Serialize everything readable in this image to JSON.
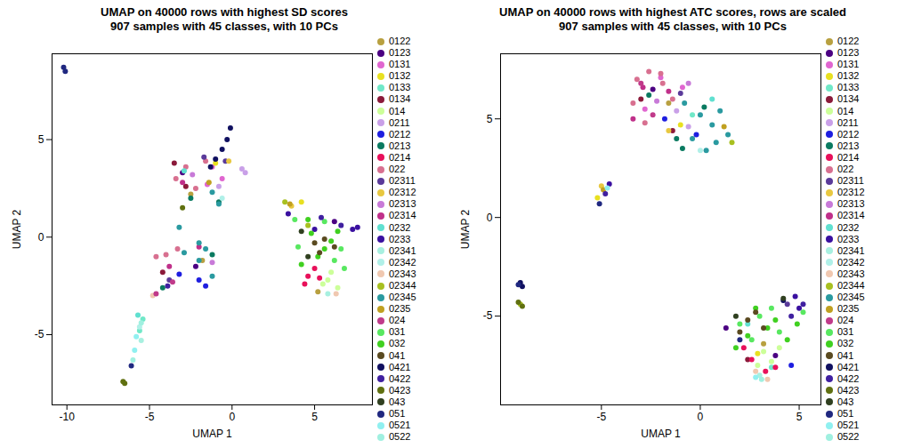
{
  "chart_data": [
    {
      "type": "scatter",
      "title": "UMAP on 40000 rows with highest SD scores",
      "subtitle": "907 samples with 45 classes, with 10 PCs",
      "xlabel": "UMAP 1",
      "ylabel": "UMAP 2",
      "xlim": [
        -10.9,
        8.5
      ],
      "ylim": [
        -8.6,
        9.4
      ],
      "xticks": [
        -10,
        -5,
        0,
        5
      ],
      "yticks": [
        -5,
        0,
        5
      ],
      "legend": "right",
      "series": [
        {
          "name": "0122",
          "color": "#b8a040",
          "x": [
            -2.5,
            -1.8,
            5.2
          ],
          "y": [
            2.2,
            -1.2,
            -2.8
          ]
        },
        {
          "name": "0123",
          "color": "#4b0082",
          "x": [
            -3.0,
            -2.2,
            6.2
          ],
          "y": [
            3.3,
            -1.5,
            0.8
          ]
        },
        {
          "name": "0131",
          "color": "#e066d0",
          "x": [
            -1.2,
            -0.6,
            -1.5
          ],
          "y": [
            3.6,
            3.0,
            2.7
          ]
        },
        {
          "name": "0132",
          "color": "#e8e020",
          "x": [
            -1.0,
            4.2
          ],
          "y": [
            3.8,
            1.8
          ]
        },
        {
          "name": "0133",
          "color": "#70e8c8",
          "x": [
            -5.4,
            -5.6
          ],
          "y": [
            -4.2,
            -4.8
          ]
        },
        {
          "name": "0134",
          "color": "#8b1a3a",
          "x": [
            -2.8,
            -4.2,
            -3.5
          ],
          "y": [
            2.6,
            -1.8,
            3.8
          ]
        },
        {
          "name": "014",
          "color": "#ccff99",
          "x": [
            5.8,
            6.4,
            6.0,
            5.5
          ],
          "y": [
            -2.2,
            -2.6,
            -1.8,
            -2.4
          ]
        },
        {
          "name": "0211",
          "color": "#c9a0e8",
          "x": [
            0.6,
            0.8,
            -0.8
          ],
          "y": [
            3.5,
            3.3,
            2.6
          ]
        },
        {
          "name": "0212",
          "color": "#1e1ee0",
          "x": [
            -2.0,
            -1.6,
            -3.2
          ],
          "y": [
            -2.2,
            -2.5,
            -1.9
          ]
        },
        {
          "name": "0213",
          "color": "#0a7a60",
          "x": [
            -2.5,
            -1.2,
            -4.2,
            -0.8
          ],
          "y": [
            2.0,
            -0.9,
            -2.6,
            1.8
          ]
        },
        {
          "name": "0214",
          "color": "#e8105a",
          "x": [
            4.6,
            5.0,
            4.4,
            5.3
          ],
          "y": [
            -2.0,
            -1.6,
            -2.4,
            -2.1
          ]
        },
        {
          "name": "022",
          "color": "#d87090",
          "x": [
            -3.4,
            -2.8,
            -2.2,
            -4.6,
            -4.0,
            -3.3,
            -1.6
          ],
          "y": [
            3.0,
            3.6,
            2.5,
            -1.0,
            -0.9,
            -0.6,
            3.9
          ]
        },
        {
          "name": "02311",
          "color": "#5a3a9a",
          "x": [
            -1.7,
            -0.4,
            -3.8
          ],
          "y": [
            4.1,
            3.9,
            -2.2
          ]
        },
        {
          "name": "02312",
          "color": "#e8c840",
          "x": [
            -0.2,
            3.6
          ],
          "y": [
            3.9,
            1.6
          ]
        },
        {
          "name": "02313",
          "color": "#c87ad8",
          "x": [
            -2.4,
            -1.2
          ],
          "y": [
            3.2,
            -1.3
          ]
        },
        {
          "name": "02314",
          "color": "#c0308a",
          "x": [
            -3.0,
            -3.8,
            -2.0
          ],
          "y": [
            2.8,
            -1.5,
            -0.5
          ]
        },
        {
          "name": "0232",
          "color": "#60e0d0",
          "x": [
            -5.7,
            -2.9
          ],
          "y": [
            -4.0,
            3.4
          ]
        },
        {
          "name": "0233",
          "color": "#3a10a0",
          "x": [
            7.6,
            7.3,
            3.4,
            5.0
          ],
          "y": [
            0.5,
            0.4,
            1.2,
            0.4
          ]
        },
        {
          "name": "02341",
          "color": "#a8f0e0",
          "x": [
            -5.5,
            5.8
          ],
          "y": [
            -5.3,
            -2.9
          ]
        },
        {
          "name": "02342",
          "color": "#b0f0e8",
          "x": [
            -5.6,
            -0.6
          ],
          "y": [
            -4.6,
            2.0
          ]
        },
        {
          "name": "02343",
          "color": "#f0c8b0",
          "x": [
            6.3,
            -4.8
          ],
          "y": [
            -2.9,
            -3.0
          ]
        },
        {
          "name": "02344",
          "color": "#a8c020",
          "x": [
            3.2,
            4.6
          ],
          "y": [
            1.8,
            0.6
          ]
        },
        {
          "name": "02345",
          "color": "#2a9aa0",
          "x": [
            -1.2,
            -0.8,
            -2.0,
            -2.9,
            -2.0,
            -1.2,
            -3.2,
            -1.6
          ],
          "y": [
            2.3,
            1.7,
            -0.3,
            -0.8,
            -1.2,
            -2.0,
            0.5,
            -0.6
          ]
        },
        {
          "name": "0235",
          "color": "#c0a020",
          "x": [
            -1.4,
            3.5
          ],
          "y": [
            2.8,
            1.7
          ]
        },
        {
          "name": "024",
          "color": "#c03a8a",
          "x": [
            -3.6,
            -4.6
          ],
          "y": [
            -2.3,
            -2.9
          ]
        },
        {
          "name": "031",
          "color": "#58e860",
          "x": [
            4.0,
            6.2,
            6.6,
            3.8,
            5.6,
            6.8
          ],
          "y": [
            -0.5,
            -1.2,
            -0.6,
            0.9,
            0.8,
            -1.6
          ]
        },
        {
          "name": "032",
          "color": "#40d020",
          "x": [
            4.8,
            5.2,
            6.0,
            4.2,
            5.6,
            6.4,
            4.6
          ],
          "y": [
            0.2,
            -1.0,
            -0.2,
            -1.4,
            -0.6,
            0.3,
            0.9
          ]
        },
        {
          "name": "041",
          "color": "#5a4a20",
          "x": [
            5.0,
            5.6,
            6.2,
            5.3
          ],
          "y": [
            -0.3,
            -0.1,
            -0.5,
            -0.8
          ]
        },
        {
          "name": "0421",
          "color": "#101060",
          "x": [
            -0.1,
            -0.3,
            -0.6,
            -1.0,
            -1.3
          ],
          "y": [
            5.6,
            5.0,
            4.5,
            4.0,
            3.6
          ]
        },
        {
          "name": "0422",
          "color": "#4020a0",
          "x": [
            6.6,
            5.4,
            -3.9
          ],
          "y": [
            0.6,
            1.0,
            -2.5
          ]
        },
        {
          "name": "0423",
          "color": "#607010",
          "x": [
            -6.6,
            -6.5,
            -3.0
          ],
          "y": [
            -7.4,
            -7.5,
            1.5
          ]
        },
        {
          "name": "043",
          "color": "#304020",
          "x": [
            4.6,
            4.2
          ],
          "y": [
            -1.0,
            0.3
          ]
        },
        {
          "name": "051",
          "color": "#202880",
          "x": [
            -10.2,
            -10.1,
            -6.1
          ],
          "y": [
            8.7,
            8.5,
            -6.6
          ]
        },
        {
          "name": "0521",
          "color": "#90f0f0",
          "x": [
            -5.9,
            -5.8
          ],
          "y": [
            -5.8,
            -5.1
          ]
        },
        {
          "name": "0522",
          "color": "#a0f0e0",
          "x": [
            -6.0,
            -5.5
          ],
          "y": [
            -6.3,
            -4.4
          ]
        }
      ]
    },
    {
      "type": "scatter",
      "title": "UMAP on 40000 rows with highest ATC scores, rows are scaled",
      "subtitle": "907 samples with 45 classes, with 10 PCs",
      "xlabel": "UMAP 1",
      "ylabel": "UMAP 2",
      "xlim": [
        -10.1,
        6.1
      ],
      "ylim": [
        -9.5,
        8.3
      ],
      "xticks": [
        -5,
        0,
        5
      ],
      "yticks": [
        -5,
        0,
        5
      ],
      "legend": "right",
      "series": [
        {
          "name": "0122",
          "color": "#b8a040",
          "x": [
            -1.6,
            3.2
          ],
          "y": [
            5.8,
            -6.4
          ]
        },
        {
          "name": "0123",
          "color": "#4b0082",
          "x": [
            -2.4,
            1.3,
            3.8
          ],
          "y": [
            6.5,
            -5.6,
            -7.0
          ]
        },
        {
          "name": "0131",
          "color": "#e066d0",
          "x": [
            -2.0,
            -0.9,
            -2.8
          ],
          "y": [
            7.1,
            6.6,
            5.5
          ]
        },
        {
          "name": "0132",
          "color": "#e8e020",
          "x": [
            -1.0,
            -5.2,
            2.9
          ],
          "y": [
            4.7,
            1.0,
            -6.9
          ]
        },
        {
          "name": "0133",
          "color": "#70e8c8",
          "x": [
            -0.4,
            3.6
          ],
          "y": [
            5.2,
            -7.6
          ]
        },
        {
          "name": "0134",
          "color": "#8b1a3a",
          "x": [
            -3.0,
            -1.4,
            2.4
          ],
          "y": [
            6.0,
            4.4,
            -7.2
          ]
        },
        {
          "name": "014",
          "color": "#ccff99",
          "x": [
            3.2,
            3.6,
            2.9,
            4.0
          ],
          "y": [
            -6.8,
            -7.3,
            -7.5,
            -6.6
          ]
        },
        {
          "name": "0211",
          "color": "#c9a0e8",
          "x": [
            -0.6,
            -1.2
          ],
          "y": [
            4.6,
            5.4
          ]
        },
        {
          "name": "0212",
          "color": "#1e1ee0",
          "x": [
            -1.8,
            -0.2,
            4.6
          ],
          "y": [
            5.0,
            4.2,
            -7.5
          ]
        },
        {
          "name": "0213",
          "color": "#0a7a60",
          "x": [
            -1.2,
            0.2,
            -2.6,
            -0.9
          ],
          "y": [
            4.0,
            5.6,
            6.2,
            3.5
          ]
        },
        {
          "name": "0214",
          "color": "#e8105a",
          "x": [
            2.6,
            3.3,
            2.2,
            3.8
          ],
          "y": [
            -7.2,
            -7.8,
            -6.6,
            -7.6
          ]
        },
        {
          "name": "022",
          "color": "#d87090",
          "x": [
            -3.2,
            -2.6,
            -1.9,
            -3.4,
            -2.0,
            -2.8,
            -1.4
          ],
          "y": [
            7.0,
            7.4,
            6.8,
            5.8,
            7.3,
            4.8,
            6.0
          ]
        },
        {
          "name": "02311",
          "color": "#5a3a9a",
          "x": [
            -1.0,
            4.4
          ],
          "y": [
            6.3,
            -4.4
          ]
        },
        {
          "name": "02312",
          "color": "#e8c840",
          "x": [
            -1.6,
            -5.0
          ],
          "y": [
            4.4,
            1.6
          ]
        },
        {
          "name": "02313",
          "color": "#c87ad8",
          "x": [
            -2.2,
            -0.6
          ],
          "y": [
            5.9,
            6.8
          ]
        },
        {
          "name": "02314",
          "color": "#c0308a",
          "x": [
            -2.9,
            -1.6,
            -3.4
          ],
          "y": [
            6.6,
            6.4,
            5.0
          ]
        },
        {
          "name": "0232",
          "color": "#60e0d0",
          "x": [
            0.6,
            2.4
          ],
          "y": [
            6.0,
            -5.4
          ]
        },
        {
          "name": "0233",
          "color": "#3a10a0",
          "x": [
            5.0,
            4.8,
            -4.6
          ],
          "y": [
            -4.6,
            -4.0,
            1.7
          ]
        },
        {
          "name": "02341",
          "color": "#a8f0e0",
          "x": [
            3.0
          ],
          "y": [
            -8.0
          ]
        },
        {
          "name": "02342",
          "color": "#b0f0e8",
          "x": [
            0.0
          ],
          "y": [
            3.4
          ]
        },
        {
          "name": "02343",
          "color": "#f0c8b0",
          "x": [
            2.8,
            3.4
          ],
          "y": [
            -7.8,
            -8.2
          ]
        },
        {
          "name": "02344",
          "color": "#a8c020",
          "x": [
            1.6,
            -9.1
          ],
          "y": [
            3.8,
            -4.4
          ]
        },
        {
          "name": "02345",
          "color": "#2a9aa0",
          "x": [
            0.0,
            0.6,
            1.0,
            -0.4,
            0.8,
            1.4,
            0.3,
            -0.8
          ],
          "y": [
            5.2,
            4.7,
            5.4,
            4.0,
            3.8,
            4.2,
            3.4,
            5.8
          ]
        },
        {
          "name": "0235",
          "color": "#c0a020",
          "x": [
            -4.9,
            1.2
          ],
          "y": [
            1.4,
            4.6
          ]
        },
        {
          "name": "024",
          "color": "#c03a8a",
          "x": [
            -2.4,
            -3.0
          ],
          "y": [
            5.2,
            6.8
          ]
        },
        {
          "name": "031",
          "color": "#58e860",
          "x": [
            2.0,
            3.0,
            4.0,
            2.6,
            3.6,
            5.2
          ],
          "y": [
            -5.4,
            -5.0,
            -5.8,
            -6.2,
            -4.6,
            -4.8
          ]
        },
        {
          "name": "032",
          "color": "#40d020",
          "x": [
            2.4,
            3.4,
            4.4,
            1.8,
            2.8,
            3.8,
            4.9
          ],
          "y": [
            -6.0,
            -5.6,
            -6.2,
            -6.6,
            -4.6,
            -5.2,
            -5.4
          ]
        },
        {
          "name": "041",
          "color": "#5a4a20",
          "x": [
            2.4,
            2.0,
            2.8,
            3.2
          ],
          "y": [
            -5.2,
            -5.8,
            -4.8,
            -5.6
          ]
        },
        {
          "name": "0421",
          "color": "#101060",
          "x": [
            -9.1,
            -9.0,
            4.2
          ],
          "y": [
            -3.3,
            -3.5,
            -4.2
          ]
        },
        {
          "name": "0422",
          "color": "#4020a0",
          "x": [
            5.2,
            4.6,
            -4.8
          ],
          "y": [
            -4.4,
            -5.0,
            1.2
          ]
        },
        {
          "name": "0423",
          "color": "#607010",
          "x": [
            -9.2,
            -9.0
          ],
          "y": [
            -4.3,
            -4.5
          ]
        },
        {
          "name": "043",
          "color": "#304020",
          "x": [
            1.8,
            4.2
          ],
          "y": [
            -5.0,
            -4.1
          ]
        },
        {
          "name": "051",
          "color": "#202880",
          "x": [
            -9.2,
            -5.1,
            2.0
          ],
          "y": [
            -3.4,
            0.7,
            -6.2
          ]
        },
        {
          "name": "0521",
          "color": "#90f0f0",
          "x": [
            2.8,
            -4.7
          ],
          "y": [
            -8.1,
            1.5
          ]
        },
        {
          "name": "0522",
          "color": "#a0f0e0",
          "x": [
            3.1
          ],
          "y": [
            -8.2
          ]
        }
      ]
    }
  ]
}
